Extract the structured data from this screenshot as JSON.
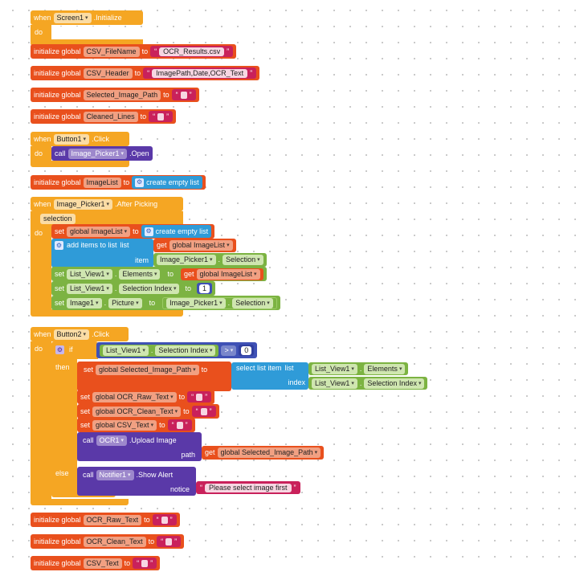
{
  "blocks": {
    "screen_init": {
      "when": "when",
      "component": "Screen1",
      "event": ".Initialize",
      "do": "do"
    },
    "g_csv_filename": {
      "init": "initialize global",
      "name": "CSV_FileName",
      "to": "to",
      "value": "OCR_Results.csv"
    },
    "g_csv_header": {
      "init": "initialize global",
      "name": "CSV_Header",
      "to": "to",
      "value": "ImagePath,Date,OCR_Text"
    },
    "g_selected_image_path": {
      "init": "initialize global",
      "name": "Selected_Image_Path",
      "to": "to"
    },
    "g_cleaned_lines": {
      "init": "initialize global",
      "name": "Cleaned_Lines",
      "to": "to"
    },
    "button1_click": {
      "when": "when",
      "component": "Button1",
      "event": ".Click",
      "do": "do",
      "call": "call",
      "target": "Image_Picker1",
      "method": ".Open"
    },
    "g_imagelist": {
      "init": "initialize global",
      "name": "ImageList",
      "to": "to",
      "value": "create empty list"
    },
    "picker_after": {
      "when": "when",
      "component": "Image_Picker1",
      "event": ".After Picking",
      "param": "selection",
      "do": "do",
      "set1": {
        "set": "set",
        "var": "global ImageList",
        "to": "to",
        "value": "create empty list"
      },
      "add": {
        "label": "add items to list",
        "list": "list",
        "get": "get",
        "list_var": "global ImageList",
        "item": "item",
        "item_comp": "Image_Picker1",
        "item_prop": "Selection"
      },
      "set2": {
        "set": "set",
        "comp": "List_View1",
        "prop": "Elements",
        "to": "to",
        "get": "get",
        "var": "global ImageList"
      },
      "set3": {
        "set": "set",
        "comp": "List_View1",
        "prop": "Selection Index",
        "to": "to",
        "value": "1"
      },
      "set4": {
        "set": "set",
        "comp": "Image1",
        "prop": "Picture",
        "to": "to",
        "val_comp": "Image_Picker1",
        "val_prop": "Selection"
      }
    },
    "button2_click": {
      "when": "when",
      "component": "Button2",
      "event": ".Click",
      "do": "do",
      "if": "if",
      "cond_comp": "List_View1",
      "cond_prop": "Selection Index",
      "op": ">",
      "cond_num": "0",
      "then": "then",
      "set_path": {
        "set": "set",
        "var": "global Selected_Image_Path",
        "to": "to",
        "select": "select list item",
        "list": "list",
        "list_comp": "List_View1",
        "list_prop": "Elements",
        "index": "index",
        "index_comp": "List_View1",
        "index_prop": "Selection Index"
      },
      "set_raw": {
        "set": "set",
        "var": "global OCR_Raw_Text",
        "to": "to"
      },
      "set_clean": {
        "set": "set",
        "var": "global OCR_Clean_Text",
        "to": "to"
      },
      "set_csv": {
        "set": "set",
        "var": "global CSV_Text",
        "to": "to"
      },
      "upload": {
        "call": "call",
        "comp": "OCR1",
        "method": ".Upload Image",
        "path": "path",
        "get": "get",
        "var": "global Selected_Image_Path"
      },
      "else": "else",
      "alert": {
        "call": "call",
        "comp": "Notifier1",
        "method": ".Show Alert",
        "notice": "notice",
        "message": "Please select image first"
      }
    },
    "g_ocr_raw": {
      "init": "initialize global",
      "name": "OCR_Raw_Text",
      "to": "to"
    },
    "g_ocr_clean": {
      "init": "initialize global",
      "name": "OCR_Clean_Text",
      "to": "to"
    },
    "g_csv_text": {
      "init": "initialize global",
      "name": "CSV_Text",
      "to": "to"
    }
  },
  "colors": {
    "event": "#f5a623",
    "global": "#e9501d",
    "list": "#2f9bd8",
    "component_call": "#5a39a8",
    "text": "#c9215b",
    "math": "#3f51b5",
    "component_get": "#7cb342"
  },
  "icons": {
    "dropdown": "▾",
    "gear": "⚙"
  }
}
